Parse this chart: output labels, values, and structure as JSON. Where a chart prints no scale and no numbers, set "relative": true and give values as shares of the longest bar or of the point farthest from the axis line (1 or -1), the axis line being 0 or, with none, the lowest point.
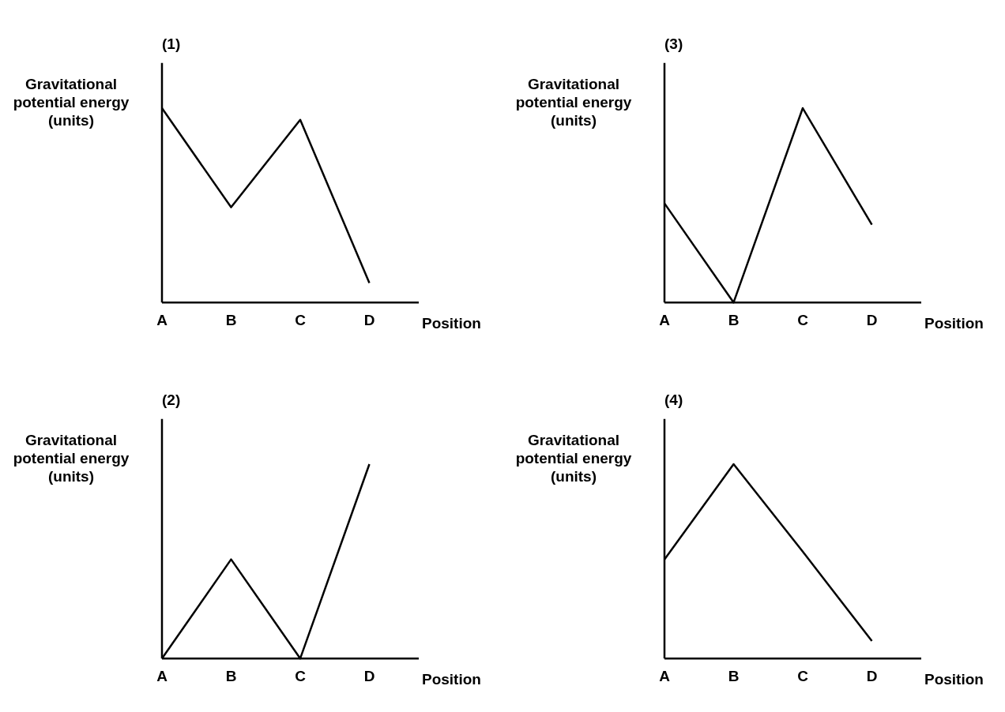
{
  "chart_data": [
    {
      "type": "line",
      "title": "(1)",
      "xlabel": "Position",
      "ylabel": "Gravitational potential energy (units)",
      "categories": [
        "A",
        "B",
        "C",
        "D"
      ],
      "relative": true,
      "color": "#000000",
      "marker": "none",
      "legend": false,
      "grid": false,
      "values": [
        1,
        0.49,
        0.94,
        0.1
      ]
    },
    {
      "type": "line",
      "title": "(3)",
      "xlabel": "Position",
      "ylabel": "Gravitational potential energy (units)",
      "categories": [
        "A",
        "B",
        "C",
        "D"
      ],
      "relative": true,
      "color": "#000000",
      "marker": "none",
      "legend": false,
      "grid": false,
      "values": [
        0.51,
        0,
        1,
        0.4
      ]
    },
    {
      "type": "line",
      "title": "(2)",
      "xlabel": "Position",
      "ylabel": "Gravitational potential energy (units)",
      "categories": [
        "A",
        "B",
        "C",
        "D"
      ],
      "relative": true,
      "color": "#000000",
      "marker": "none",
      "legend": false,
      "grid": false,
      "values": [
        0,
        0.51,
        0,
        1
      ]
    },
    {
      "type": "line",
      "title": "(4)",
      "xlabel": "Position",
      "ylabel": "Gravitational potential energy (units)",
      "categories": [
        "A",
        "B",
        "C",
        "D"
      ],
      "relative": true,
      "color": "#000000",
      "marker": "none",
      "legend": false,
      "grid": false,
      "values": [
        0.51,
        1,
        0.55,
        0.09
      ]
    }
  ]
}
